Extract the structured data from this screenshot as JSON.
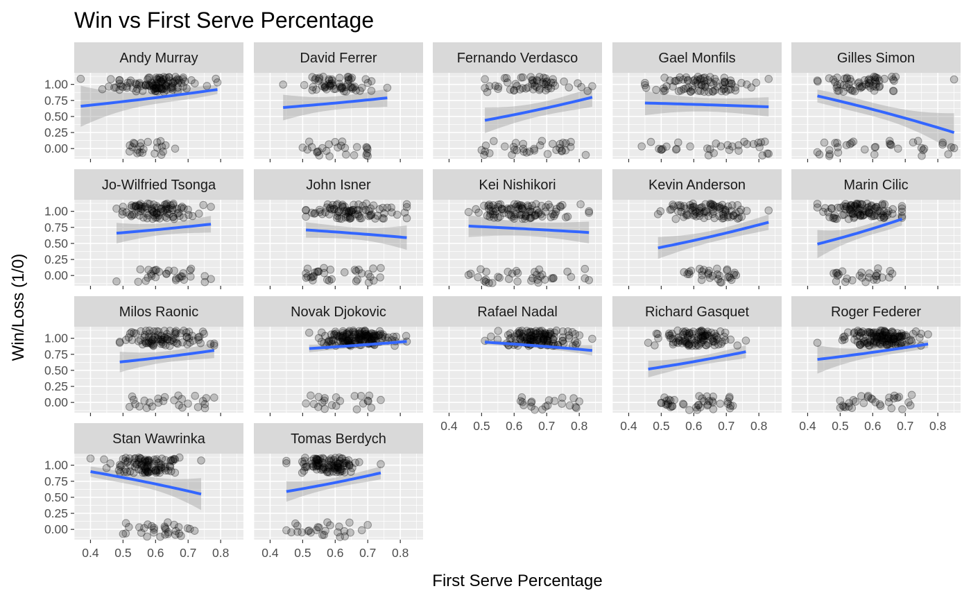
{
  "chart_data": {
    "type": "scatter",
    "title": "Win vs First Serve Percentage",
    "xlabel": "First Serve Percentage",
    "ylabel": "Win/Loss (1/0)",
    "xlim": [
      0.35,
      0.87
    ],
    "ylim": [
      -0.16,
      1.18
    ],
    "x_ticks": [
      0.4,
      0.5,
      0.6,
      0.7,
      0.8
    ],
    "x_tick_labels": [
      "0.4",
      "0.5",
      "0.6",
      "0.7",
      "0.8"
    ],
    "y_ticks": [
      0,
      0.25,
      0.5,
      0.75,
      1
    ],
    "y_tick_labels": [
      "0.00",
      "0.25",
      "0.50",
      "0.75",
      "1.00"
    ],
    "grid": true,
    "layout": {
      "columns": 5,
      "rows": 4
    },
    "point_color": "#000000",
    "point_alpha": 0.2,
    "fit_color": "#3366FF",
    "ribbon_color": "#999999",
    "panel_background": "#EBEBEB",
    "strip_background": "#D9D9D9",
    "panels": [
      {
        "player": "Andy Murray",
        "x_range": [
          0.37,
          0.79
        ],
        "fit_start": 0.66,
        "fit_end": 0.92,
        "ci_start": 0.32,
        "ci_end": 0.07,
        "win_center": 0.6,
        "win_spread": 0.06,
        "loss_range": [
          0.52,
          0.66
        ],
        "n_win": 110,
        "n_loss": 22,
        "x_axis": false
      },
      {
        "player": "David Ferrer",
        "x_range": [
          0.44,
          0.76
        ],
        "fit_start": 0.64,
        "fit_end": 0.79,
        "ci_start": 0.2,
        "ci_end": 0.14,
        "win_center": 0.6,
        "win_spread": 0.06,
        "loss_range": [
          0.5,
          0.7
        ],
        "n_win": 60,
        "n_loss": 26,
        "x_axis": false
      },
      {
        "player": "Fernando Verdasco",
        "x_range": [
          0.51,
          0.84
        ],
        "fit_start": 0.44,
        "fit_end": 0.8,
        "ci_start": 0.2,
        "ci_end": 0.15,
        "win_center": 0.64,
        "win_spread": 0.07,
        "loss_range": [
          0.5,
          0.82
        ],
        "n_win": 55,
        "n_loss": 34,
        "x_axis": false
      },
      {
        "player": "Gael Monfils",
        "x_range": [
          0.45,
          0.83
        ],
        "fit_start": 0.71,
        "fit_end": 0.65,
        "ci_start": 0.19,
        "ci_end": 0.15,
        "win_center": 0.63,
        "win_spread": 0.07,
        "loss_range": [
          0.44,
          0.83
        ],
        "n_win": 80,
        "n_loss": 32,
        "x_axis": false
      },
      {
        "player": "Gilles Simon",
        "x_range": [
          0.43,
          0.85
        ],
        "fit_start": 0.82,
        "fit_end": 0.25,
        "ci_start": 0.1,
        "ci_end": 0.3,
        "win_center": 0.56,
        "win_spread": 0.06,
        "loss_range": [
          0.43,
          0.85
        ],
        "n_win": 60,
        "n_loss": 34,
        "x_axis": false
      },
      {
        "player": "Jo-Wilfried Tsonga",
        "x_range": [
          0.48,
          0.77
        ],
        "fit_start": 0.66,
        "fit_end": 0.8,
        "ci_start": 0.16,
        "ci_end": 0.13,
        "win_center": 0.6,
        "win_spread": 0.06,
        "loss_range": [
          0.48,
          0.77
        ],
        "n_win": 90,
        "n_loss": 30,
        "x_axis": false
      },
      {
        "player": "John Isner",
        "x_range": [
          0.51,
          0.82
        ],
        "fit_start": 0.71,
        "fit_end": 0.59,
        "ci_start": 0.12,
        "ci_end": 0.19,
        "win_center": 0.65,
        "win_spread": 0.07,
        "loss_range": [
          0.51,
          0.74
        ],
        "n_win": 85,
        "n_loss": 32,
        "x_axis": false
      },
      {
        "player": "Kei Nishikori",
        "x_range": [
          0.46,
          0.83
        ],
        "fit_start": 0.77,
        "fit_end": 0.67,
        "ci_start": 0.17,
        "ci_end": 0.17,
        "win_center": 0.63,
        "win_spread": 0.07,
        "loss_range": [
          0.46,
          0.83
        ],
        "n_win": 95,
        "n_loss": 36,
        "x_axis": false
      },
      {
        "player": "Kevin Anderson",
        "x_range": [
          0.49,
          0.83
        ],
        "fit_start": 0.43,
        "fit_end": 0.83,
        "ci_start": 0.17,
        "ci_end": 0.12,
        "win_center": 0.65,
        "win_spread": 0.06,
        "loss_range": [
          0.57,
          0.73
        ],
        "n_win": 85,
        "n_loss": 30,
        "x_axis": false
      },
      {
        "player": "Marin Cilic",
        "x_range": [
          0.43,
          0.69
        ],
        "fit_start": 0.49,
        "fit_end": 0.88,
        "ci_start": 0.22,
        "ci_end": 0.1,
        "win_center": 0.57,
        "win_spread": 0.06,
        "loss_range": [
          0.48,
          0.66
        ],
        "n_win": 100,
        "n_loss": 26,
        "x_axis": false
      },
      {
        "player": "Milos Raonic",
        "x_range": [
          0.49,
          0.78
        ],
        "fit_start": 0.63,
        "fit_end": 0.81,
        "ci_start": 0.16,
        "ci_end": 0.12,
        "win_center": 0.63,
        "win_spread": 0.06,
        "loss_range": [
          0.52,
          0.78
        ],
        "n_win": 90,
        "n_loss": 26,
        "x_axis": false
      },
      {
        "player": "Novak Djokovic",
        "x_range": [
          0.52,
          0.82
        ],
        "fit_start": 0.84,
        "fit_end": 0.95,
        "ci_start": 0.06,
        "ci_end": 0.05,
        "win_center": 0.67,
        "win_spread": 0.05,
        "loss_range": [
          0.51,
          0.74
        ],
        "n_win": 150,
        "n_loss": 22,
        "x_axis": false
      },
      {
        "player": "Rafael Nadal",
        "x_range": [
          0.51,
          0.84
        ],
        "fit_start": 0.94,
        "fit_end": 0.81,
        "ci_start": 0.04,
        "ci_end": 0.08,
        "win_center": 0.67,
        "win_spread": 0.06,
        "loss_range": [
          0.62,
          0.8
        ],
        "n_win": 130,
        "n_loss": 20,
        "x_axis": true
      },
      {
        "player": "Richard Gasquet",
        "x_range": [
          0.46,
          0.76
        ],
        "fit_start": 0.52,
        "fit_end": 0.79,
        "ci_start": 0.13,
        "ci_end": 0.1,
        "win_center": 0.61,
        "win_spread": 0.05,
        "loss_range": [
          0.5,
          0.72
        ],
        "n_win": 100,
        "n_loss": 40,
        "x_axis": true
      },
      {
        "player": "Roger Federer",
        "x_range": [
          0.43,
          0.77
        ],
        "fit_start": 0.67,
        "fit_end": 0.91,
        "ci_start": 0.22,
        "ci_end": 0.06,
        "win_center": 0.63,
        "win_spread": 0.05,
        "loss_range": [
          0.5,
          0.72
        ],
        "n_win": 140,
        "n_loss": 30,
        "x_axis": true
      },
      {
        "player": "Stan Wawrinka",
        "x_range": [
          0.4,
          0.74
        ],
        "fit_start": 0.9,
        "fit_end": 0.55,
        "ci_start": 0.08,
        "ci_end": 0.25,
        "win_center": 0.57,
        "win_spread": 0.05,
        "loss_range": [
          0.5,
          0.72
        ],
        "n_win": 100,
        "n_loss": 30,
        "x_axis": true
      },
      {
        "player": "Tomas Berdych",
        "x_range": [
          0.45,
          0.74
        ],
        "fit_start": 0.59,
        "fit_end": 0.88,
        "ci_start": 0.16,
        "ci_end": 0.1,
        "win_center": 0.58,
        "win_spread": 0.05,
        "loss_range": [
          0.45,
          0.7
        ],
        "n_win": 100,
        "n_loss": 26,
        "x_axis": true
      }
    ]
  }
}
